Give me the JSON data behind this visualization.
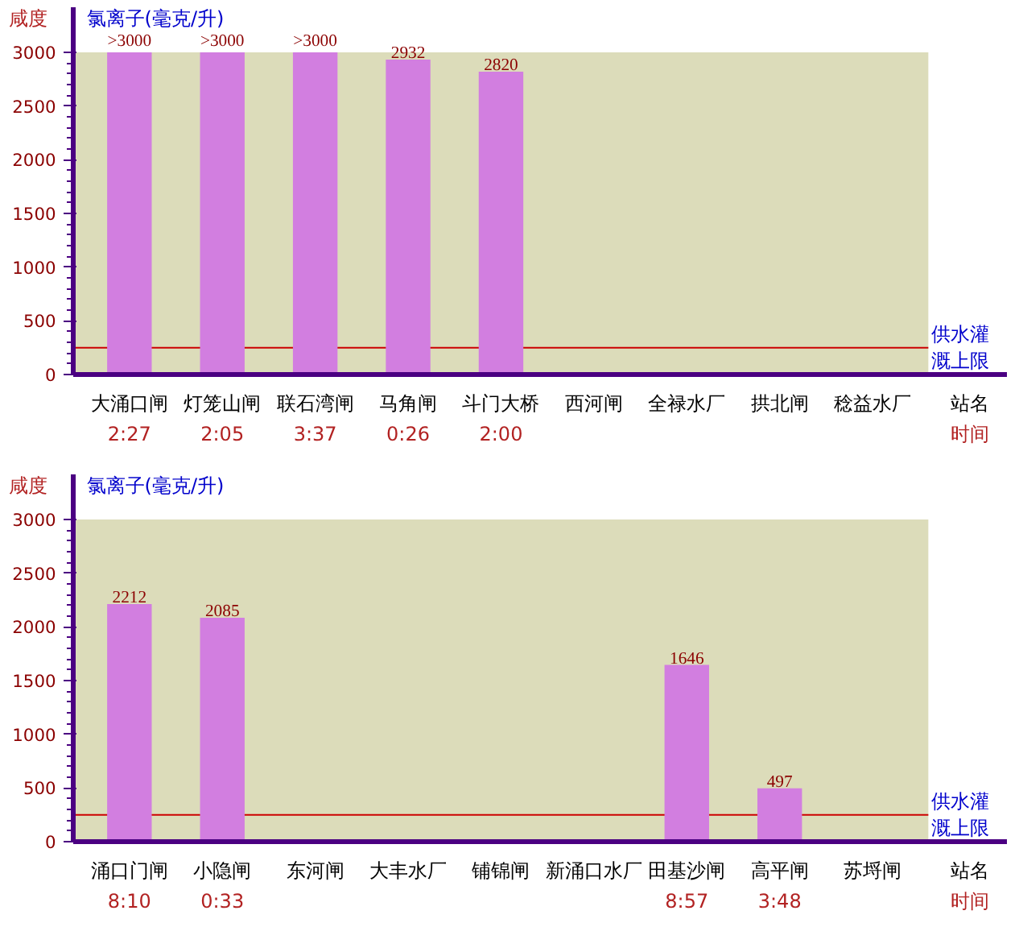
{
  "chart_data": [
    {
      "type": "bar",
      "title": "氯离子(毫克/升)",
      "ylabel": "咸度",
      "xlabel": "站名",
      "categories": [
        "大涌口闸\n2:27",
        "灯笼山闸\n2:05",
        "联石湾闸\n3:37",
        "马角闸\n0:26",
        "斗门大桥\n2:00",
        "西河闸",
        "全禄水厂",
        "拱北闸",
        "稔益水厂"
      ],
      "values": [
        3000,
        3000,
        3000,
        2932,
        2820,
        null,
        null,
        null,
        null
      ],
      "color": "#d27ee0",
      "value_labels": [
        ">3000",
        ">3000",
        ">3000",
        "2932",
        "2820",
        null,
        null,
        null,
        null
      ],
      "ylim": [
        0,
        3000
      ],
      "yticks": [
        0,
        500,
        1000,
        1500,
        2000,
        2500,
        3000
      ],
      "ref_lines": [
        {
          "axis": "y",
          "value": 250,
          "label": "供水灌溉上限",
          "color": "#cc0000"
        }
      ],
      "annotations": [
        "时间"
      ]
    },
    {
      "type": "bar",
      "title": "氯离子(毫克/升)",
      "ylabel": "咸度",
      "xlabel": "站名",
      "categories": [
        "涌口门闸\n8:10",
        "小隐闸\n0:33",
        "东河闸",
        "大丰水厂",
        "铺锦闸",
        "新涌口水厂",
        "田基沙闸\n8:57",
        "高平闸\n3:48",
        "苏埒闸"
      ],
      "values": [
        2212,
        2085,
        null,
        null,
        null,
        null,
        1646,
        497,
        null
      ],
      "color": "#d27ee0",
      "value_labels": [
        "2212",
        "2085",
        null,
        null,
        null,
        null,
        "1646",
        "497",
        null
      ],
      "ylim": [
        0,
        3000
      ],
      "yticks": [
        0,
        500,
        1000,
        1500,
        2000,
        2500,
        3000
      ],
      "ref_lines": [
        {
          "axis": "y",
          "value": 250,
          "label": "供水灌溉上限",
          "color": "#cc0000"
        }
      ],
      "annotations": [
        "时间"
      ]
    }
  ]
}
